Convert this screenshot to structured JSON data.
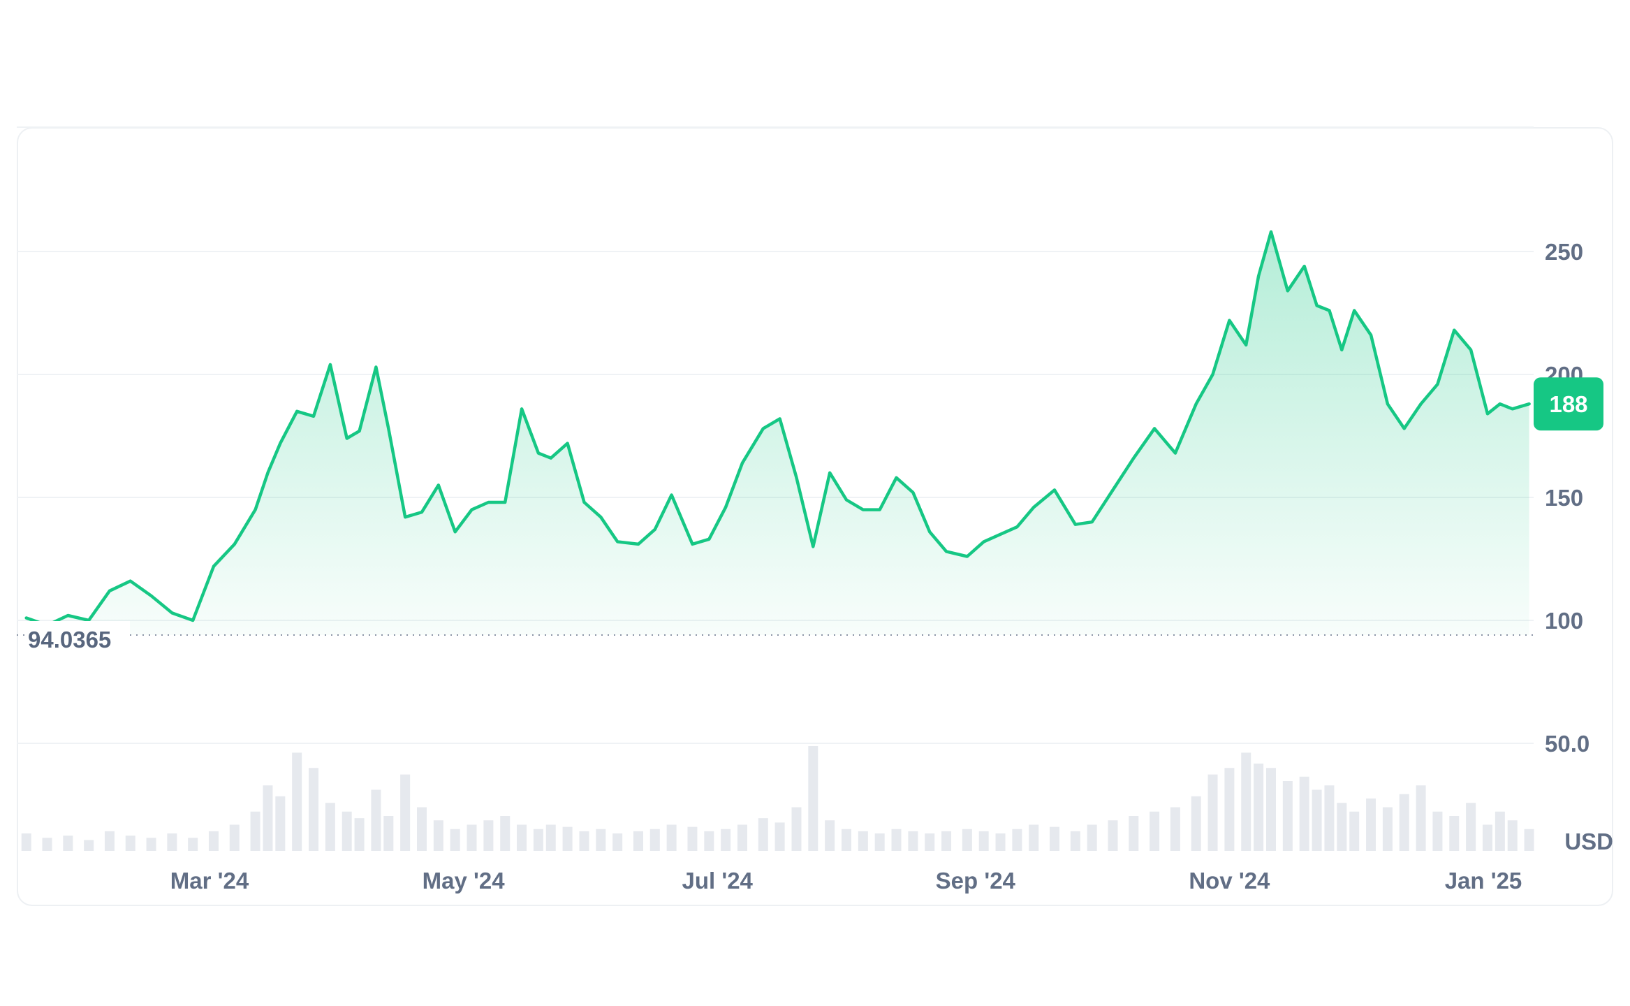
{
  "chart_data": {
    "type": "area",
    "currency": "USD",
    "x_tick_labels": [
      "Mar '24",
      "May '24",
      "Jul '24",
      "Sep '24",
      "Nov '24",
      "Jan '25"
    ],
    "y_tick_labels": [
      "50.0",
      "100",
      "150",
      "200",
      "250"
    ],
    "ylim": [
      20,
      300
    ],
    "baseline_value": 94.0365,
    "baseline_label": "94.0365",
    "current_value_label": "188",
    "grid": true,
    "line_color": "#16c784",
    "fill_color": "#16c784",
    "badge_color": "#16c784",
    "x": [
      "2024-01-17",
      "2024-01-22",
      "2024-01-27",
      "2024-02-01",
      "2024-02-06",
      "2024-02-11",
      "2024-02-16",
      "2024-02-21",
      "2024-02-26",
      "2024-03-02",
      "2024-03-07",
      "2024-03-12",
      "2024-03-15",
      "2024-03-18",
      "2024-03-22",
      "2024-03-26",
      "2024-03-30",
      "2024-04-03",
      "2024-04-06",
      "2024-04-10",
      "2024-04-13",
      "2024-04-17",
      "2024-04-21",
      "2024-04-25",
      "2024-04-29",
      "2024-05-03",
      "2024-05-07",
      "2024-05-11",
      "2024-05-15",
      "2024-05-19",
      "2024-05-22",
      "2024-05-26",
      "2024-05-30",
      "2024-06-03",
      "2024-06-07",
      "2024-06-12",
      "2024-06-16",
      "2024-06-20",
      "2024-06-25",
      "2024-06-29",
      "2024-07-03",
      "2024-07-07",
      "2024-07-12",
      "2024-07-16",
      "2024-07-20",
      "2024-07-24",
      "2024-07-28",
      "2024-08-01",
      "2024-08-05",
      "2024-08-09",
      "2024-08-13",
      "2024-08-17",
      "2024-08-21",
      "2024-08-25",
      "2024-08-30",
      "2024-09-03",
      "2024-09-07",
      "2024-09-11",
      "2024-09-15",
      "2024-09-20",
      "2024-09-25",
      "2024-09-29",
      "2024-10-04",
      "2024-10-09",
      "2024-10-14",
      "2024-10-19",
      "2024-10-24",
      "2024-10-28",
      "2024-11-01",
      "2024-11-05",
      "2024-11-08",
      "2024-11-11",
      "2024-11-15",
      "2024-11-19",
      "2024-11-22",
      "2024-11-25",
      "2024-11-28",
      "2024-12-01",
      "2024-12-05",
      "2024-12-09",
      "2024-12-13",
      "2024-12-17",
      "2024-12-21",
      "2024-12-25",
      "2024-12-29",
      "2025-01-02",
      "2025-01-05",
      "2025-01-08",
      "2025-01-12"
    ],
    "values": [
      101,
      98,
      102,
      100,
      112,
      116,
      110,
      103,
      100,
      122,
      131,
      145,
      160,
      172,
      185,
      183,
      204,
      174,
      177,
      203,
      178,
      142,
      144,
      155,
      136,
      145,
      148,
      148,
      186,
      168,
      166,
      172,
      148,
      142,
      132,
      131,
      137,
      151,
      131,
      133,
      146,
      164,
      178,
      182,
      158,
      130,
      160,
      149,
      145,
      145,
      158,
      152,
      136,
      128,
      126,
      132,
      135,
      138,
      146,
      153,
      139,
      140,
      153,
      166,
      178,
      168,
      188,
      200,
      222,
      212,
      240,
      258,
      234,
      244,
      228,
      226,
      210,
      226,
      216,
      188,
      178,
      188,
      196,
      218,
      210,
      184,
      188,
      186,
      188
    ],
    "volume": [
      8,
      6,
      7,
      5,
      9,
      7,
      6,
      8,
      6,
      9,
      12,
      18,
      30,
      25,
      45,
      38,
      22,
      18,
      15,
      28,
      16,
      35,
      20,
      14,
      10,
      12,
      14,
      16,
      12,
      10,
      12,
      11,
      9,
      10,
      8,
      9,
      10,
      12,
      11,
      9,
      10,
      12,
      15,
      13,
      20,
      48,
      14,
      10,
      9,
      8,
      10,
      9,
      8,
      9,
      10,
      9,
      8,
      10,
      12,
      11,
      9,
      12,
      14,
      16,
      18,
      20,
      25,
      35,
      38,
      45,
      40,
      38,
      32,
      34,
      28,
      30,
      22,
      18,
      24,
      20,
      26,
      30,
      18,
      16,
      22,
      12,
      18,
      14,
      10
    ]
  }
}
